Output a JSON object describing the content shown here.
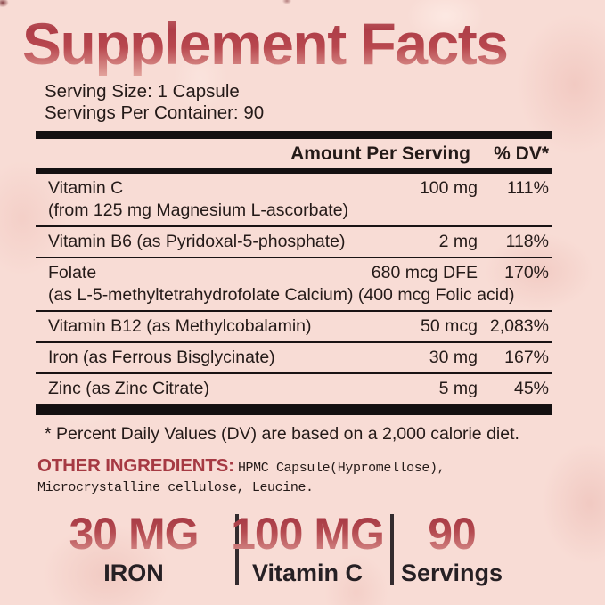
{
  "label": {
    "title": "Supplement Facts",
    "serving_size": "Serving Size: 1 Capsule",
    "servings_per_container": "Servings Per Container: 90",
    "header": {
      "amount": "Amount Per Serving",
      "dv": "% DV*"
    },
    "rows": [
      {
        "name": "Vitamin C",
        "sub": "(from 125 mg Magnesium L-ascorbate)",
        "amount": "100 mg",
        "dv": "111%"
      },
      {
        "name": "Vitamin B6 (as Pyridoxal-5-phosphate)",
        "amount": "2 mg",
        "dv": "118%"
      },
      {
        "name": "Folate",
        "sub": "(as L-5-methyltetrahydrofolate Calcium) (400 mcg Folic acid)",
        "amount": "680 mcg DFE",
        "dv": "170%"
      },
      {
        "name": "Vitamin B12 (as Methylcobalamin)",
        "amount": "50 mcg",
        "dv": "2,083%"
      },
      {
        "name": "Iron (as Ferrous Bisglycinate)",
        "amount": "30 mg",
        "dv": "167%"
      },
      {
        "name": "Zinc (as Zinc Citrate)",
        "amount": "5 mg",
        "dv": "45%"
      }
    ],
    "footnote": "* Percent Daily Values (DV) are based on a 2,000 calorie diet.",
    "other_ingredients_label": "OTHER INGREDIENTS:",
    "other_ingredients_value": "HPMC Capsule(Hypromellose), Microcrystalline cellulose, Leucine.",
    "stats": [
      {
        "value": "30 MG",
        "label": "IRON"
      },
      {
        "value": "100 MG",
        "label": "Vitamin C"
      },
      {
        "value": "90",
        "label": "Servings"
      }
    ],
    "colors": {
      "background": "#f8dcd5",
      "accent_red": "#ae3e48",
      "ingredients_red": "#a63a43",
      "text": "#241a18",
      "bar": "#141011"
    }
  }
}
